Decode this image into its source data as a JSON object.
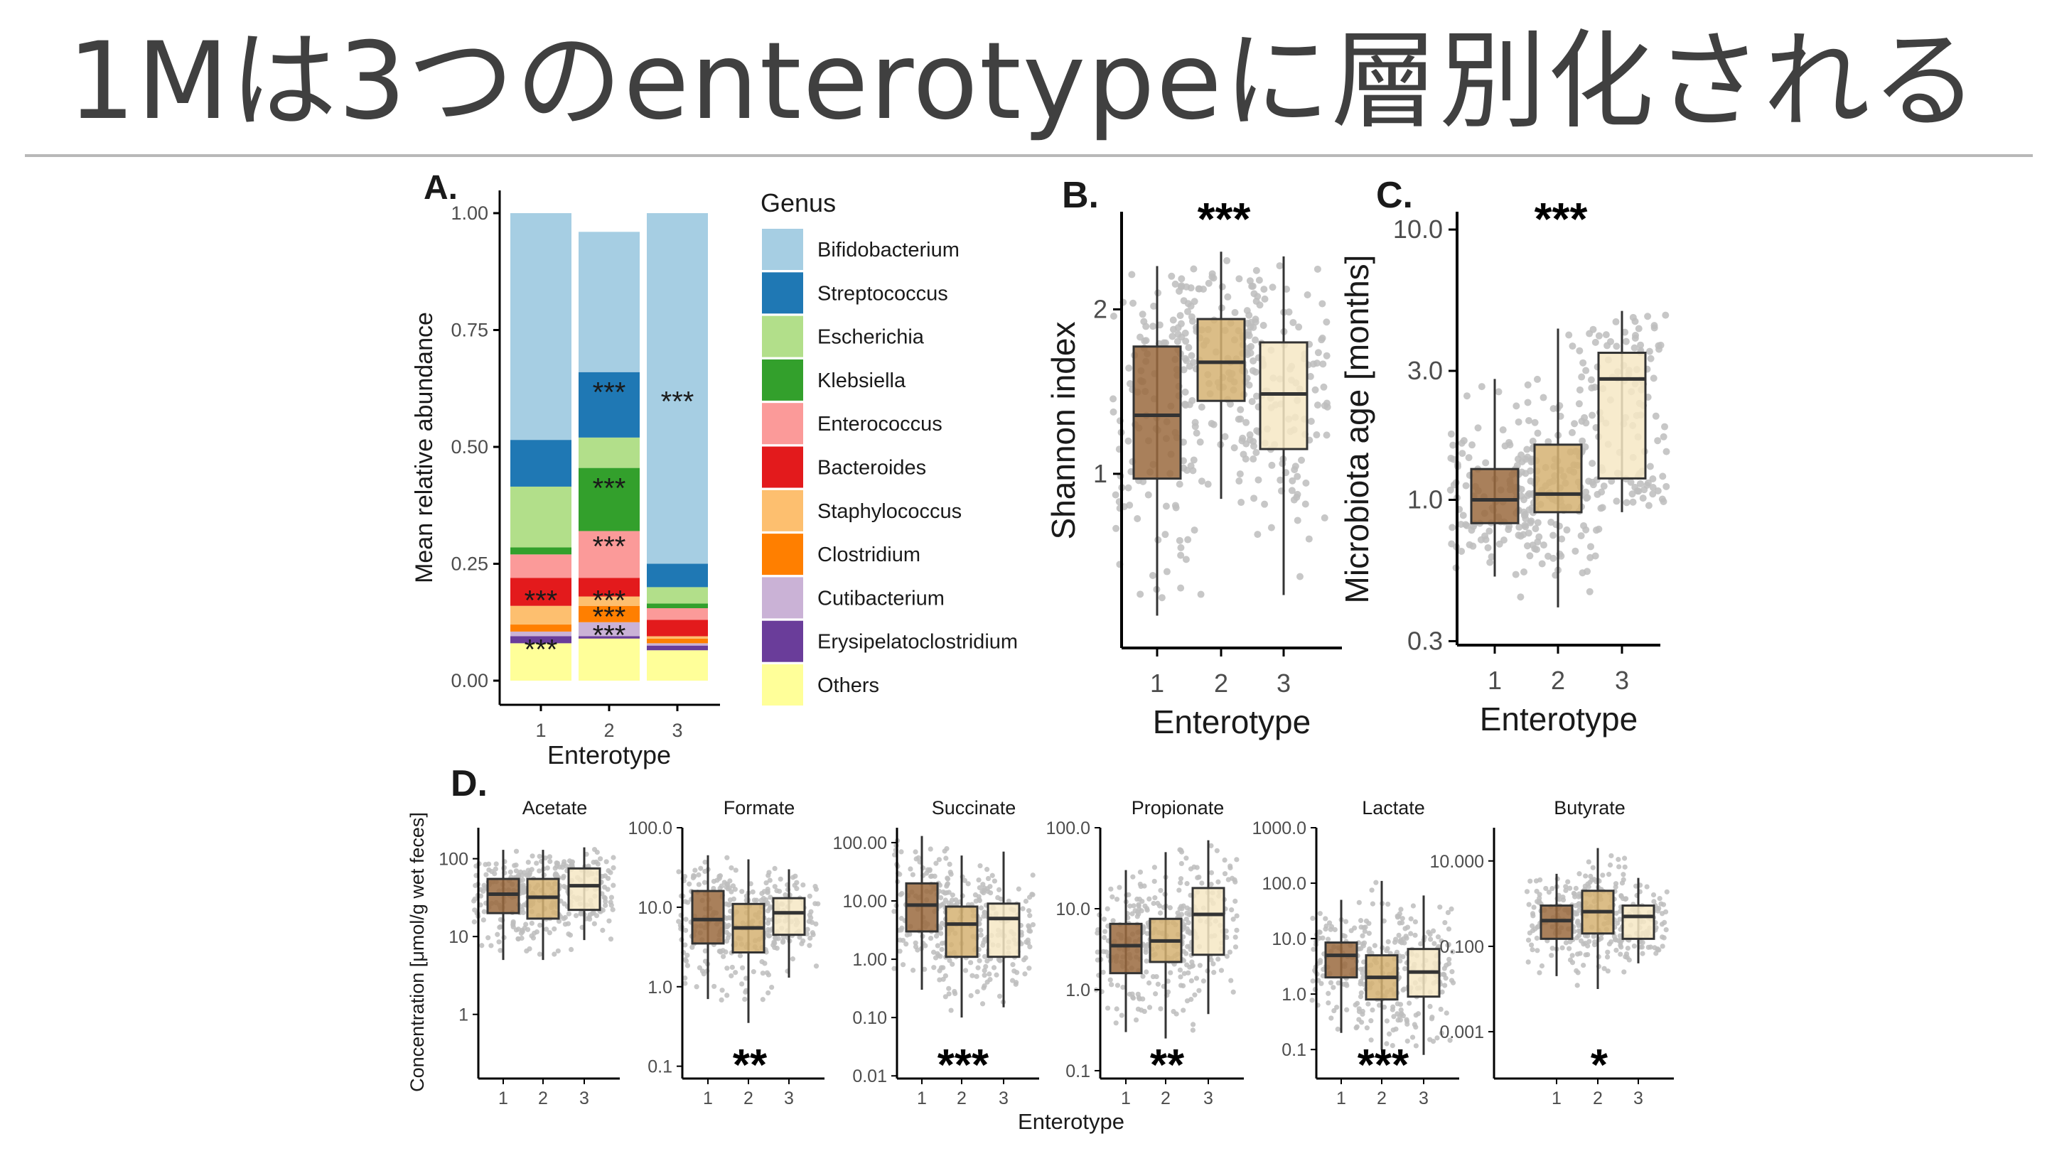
{
  "slide": {
    "title": "1Mは3つのenterotypeに層別化される"
  },
  "colors": {
    "ent1": "#9a6a3e",
    "ent2": "#d5b272",
    "ent3": "#f6e8c4",
    "jitter": "#bdbdbd",
    "box_line": "#333333",
    "axis": "#000000"
  },
  "chart_data": [
    {
      "panel": "A.",
      "type": "bar",
      "stacked": true,
      "categories": [
        "1",
        "2",
        "3"
      ],
      "xlabel": "Enterotype",
      "ylabel": "Mean relative abundance",
      "ylim": [
        0,
        1
      ],
      "yticks": [
        "0.00",
        "0.25",
        "0.50",
        "0.75",
        "1.00"
      ],
      "legend_title": "Genus",
      "legend_position": "right",
      "series": [
        {
          "name": "Others",
          "color": "#ffff99",
          "values": [
            0.08,
            0.09,
            0.065
          ]
        },
        {
          "name": "Erysipelatoclostridium",
          "color": "#6a3d9a",
          "values": [
            0.015,
            0.005,
            0.01
          ]
        },
        {
          "name": "Cutibacterium",
          "color": "#cab2d6",
          "values": [
            0.01,
            0.03,
            0.005
          ]
        },
        {
          "name": "Clostridium",
          "color": "#ff7f00",
          "values": [
            0.015,
            0.035,
            0.01
          ]
        },
        {
          "name": "Staphylococcus",
          "color": "#fdbf6f",
          "values": [
            0.04,
            0.02,
            0.005
          ]
        },
        {
          "name": "Bacteroides",
          "color": "#e31a1c",
          "values": [
            0.06,
            0.04,
            0.035
          ]
        },
        {
          "name": "Enterococcus",
          "color": "#fb9a99",
          "values": [
            0.05,
            0.1,
            0.025
          ]
        },
        {
          "name": "Klebsiella",
          "color": "#33a02c",
          "values": [
            0.015,
            0.135,
            0.01
          ]
        },
        {
          "name": "Escherichia",
          "color": "#b2df8a",
          "values": [
            0.13,
            0.065,
            0.035
          ]
        },
        {
          "name": "Streptococcus",
          "color": "#1f78b4",
          "values": [
            0.1,
            0.14,
            0.05
          ]
        },
        {
          "name": "Bifidobacterium",
          "color": "#a6cee3",
          "values": [
            0.485,
            0.3,
            0.75
          ]
        }
      ],
      "annotations": [
        {
          "text": "***",
          "category": "3",
          "y": 0.61
        },
        {
          "text": "***",
          "category": "2",
          "y": 0.63
        },
        {
          "text": "***",
          "category": "2",
          "y": 0.425
        },
        {
          "text": "***",
          "category": "2",
          "y": 0.3
        },
        {
          "text": "***",
          "category": "1",
          "y": 0.185
        },
        {
          "text": "***",
          "category": "2",
          "y": 0.185
        },
        {
          "text": "***",
          "category": "2",
          "y": 0.15
        },
        {
          "text": "***",
          "category": "2",
          "y": 0.11
        },
        {
          "text": "***",
          "category": "1",
          "y": 0.08
        }
      ]
    },
    {
      "panel": "B.",
      "type": "boxplot",
      "categories": [
        "1",
        "2",
        "3"
      ],
      "xlabel": "Enterotype",
      "ylabel": "Shannon index",
      "scale": "log",
      "ylim": [
        0.48,
        3.0
      ],
      "yticks": [
        1,
        2
      ],
      "significance": "***",
      "boxes": [
        {
          "min": 0.55,
          "q1": 0.98,
          "median": 1.28,
          "q3": 1.71,
          "max": 2.4
        },
        {
          "min": 0.9,
          "q1": 1.36,
          "median": 1.6,
          "q3": 1.92,
          "max": 2.55
        },
        {
          "min": 0.6,
          "q1": 1.11,
          "median": 1.4,
          "q3": 1.74,
          "max": 2.5
        }
      ]
    },
    {
      "panel": "C.",
      "type": "boxplot",
      "categories": [
        "1",
        "2",
        "3"
      ],
      "xlabel": "Enterotype",
      "ylabel": "Microbiota age [months]",
      "scale": "log",
      "ylim": [
        0.29,
        11.5
      ],
      "yticks": [
        "0.3",
        "1.0",
        "3.0",
        "10.0"
      ],
      "significance": "***",
      "boxes": [
        {
          "min": 0.52,
          "q1": 0.82,
          "median": 1.0,
          "q3": 1.3,
          "max": 2.8
        },
        {
          "min": 0.4,
          "q1": 0.9,
          "median": 1.05,
          "q3": 1.6,
          "max": 4.3
        },
        {
          "min": 0.9,
          "q1": 1.2,
          "median": 2.8,
          "q3": 3.5,
          "max": 5.0
        }
      ]
    },
    {
      "panel": "D.",
      "type": "boxplot",
      "facets": true,
      "xlabel": "Enterotype",
      "ylabel": "Concentration [μmol/g wet feces]",
      "categories": [
        "1",
        "2",
        "3"
      ],
      "scale": "log",
      "facets_list": [
        {
          "name": "Acetate",
          "yticks": [
            "1",
            "10",
            "100"
          ],
          "ylim": [
            0.15,
            250
          ],
          "significance": "",
          "boxes": [
            {
              "min": 5,
              "q1": 20,
              "median": 35,
              "q3": 55,
              "max": 130
            },
            {
              "min": 5,
              "q1": 17,
              "median": 32,
              "q3": 55,
              "max": 130
            },
            {
              "min": 9,
              "q1": 22,
              "median": 45,
              "q3": 75,
              "max": 140
            }
          ]
        },
        {
          "name": "Formate",
          "yticks": [
            "0.1",
            "1.0",
            "10.0",
            "100.0"
          ],
          "ylim": [
            0.07,
            100
          ],
          "significance": "**",
          "boxes": [
            {
              "min": 0.7,
              "q1": 3.5,
              "median": 7,
              "q3": 16,
              "max": 45
            },
            {
              "min": 0.35,
              "q1": 2.7,
              "median": 5.5,
              "q3": 11,
              "max": 40
            },
            {
              "min": 1.3,
              "q1": 4.5,
              "median": 8.5,
              "q3": 13,
              "max": 30
            }
          ]
        },
        {
          "name": "Succinate",
          "yticks": [
            "0.01",
            "0.10",
            "1.00",
            "10.00",
            "100.00"
          ],
          "ylim": [
            0.009,
            180
          ],
          "significance": "***",
          "boxes": [
            {
              "min": 0.3,
              "q1": 3.0,
              "median": 8.5,
              "q3": 20,
              "max": 130
            },
            {
              "min": 0.1,
              "q1": 1.1,
              "median": 4.0,
              "q3": 8,
              "max": 60
            },
            {
              "min": 0.15,
              "q1": 1.1,
              "median": 5.0,
              "q3": 9,
              "max": 70
            }
          ]
        },
        {
          "name": "Propionate",
          "yticks": [
            "0.1",
            "1.0",
            "10.0",
            "100.0"
          ],
          "ylim": [
            0.08,
            100
          ],
          "significance": "**",
          "boxes": [
            {
              "min": 0.3,
              "q1": 1.6,
              "median": 3.5,
              "q3": 6.5,
              "max": 30
            },
            {
              "min": 0.25,
              "q1": 2.2,
              "median": 4.0,
              "q3": 7.5,
              "max": 50
            },
            {
              "min": 0.5,
              "q1": 2.7,
              "median": 8.5,
              "q3": 18,
              "max": 70
            }
          ]
        },
        {
          "name": "Lactate",
          "yticks": [
            "0.1",
            "1.0",
            "10.0",
            "100.0",
            "1000.0"
          ],
          "ylim": [
            0.03,
            1000
          ],
          "significance": "***",
          "boxes": [
            {
              "min": 0.2,
              "q1": 2.0,
              "median": 5.0,
              "q3": 8.5,
              "max": 50
            },
            {
              "min": 0.1,
              "q1": 0.8,
              "median": 2.0,
              "q3": 5.0,
              "max": 110
            },
            {
              "min": 0.08,
              "q1": 0.9,
              "median": 2.5,
              "q3": 6.5,
              "max": 60
            }
          ]
        },
        {
          "name": "Butyrate",
          "yticks": [
            "0.001",
            "0.100",
            "10.000"
          ],
          "ylim": [
            8e-05,
            60
          ],
          "significance": "*",
          "boxes": [
            {
              "min": 0.02,
              "q1": 0.15,
              "median": 0.4,
              "q3": 0.9,
              "max": 5
            },
            {
              "min": 0.01,
              "q1": 0.2,
              "median": 0.65,
              "q3": 2.0,
              "max": 20
            },
            {
              "min": 0.04,
              "q1": 0.15,
              "median": 0.5,
              "q3": 0.9,
              "max": 4
            }
          ]
        }
      ]
    }
  ]
}
